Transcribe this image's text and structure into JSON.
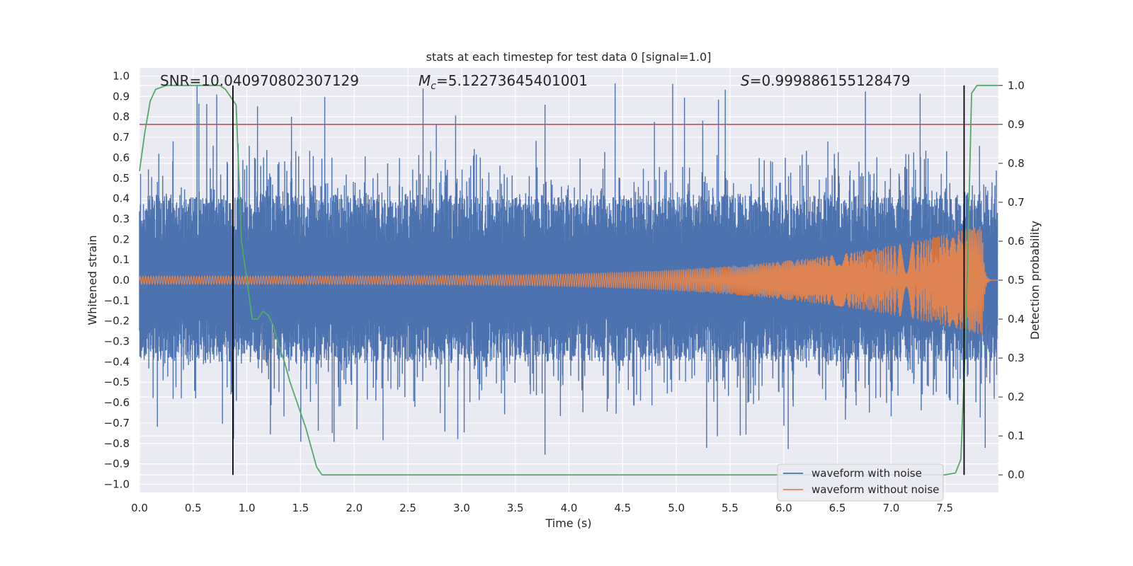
{
  "chart_data": {
    "type": "line",
    "title": "stats at each timestep for test data 0 [signal=1.0]",
    "xlabel": "Time (s)",
    "ylabel": "Whitened strain",
    "y2label": "Detection probability",
    "xlim": [
      0.0,
      8.0
    ],
    "ylim": [
      -1.04,
      1.04
    ],
    "y2lim": [
      -0.045,
      1.045
    ],
    "xticks": [
      "0.0",
      "0.5",
      "1.0",
      "1.5",
      "2.0",
      "2.5",
      "3.0",
      "3.5",
      "4.0",
      "4.5",
      "5.0",
      "5.5",
      "6.0",
      "6.5",
      "7.0",
      "7.5"
    ],
    "yticks": [
      "1.0",
      "0.9",
      "0.8",
      "0.7",
      "0.6",
      "0.5",
      "0.4",
      "0.3",
      "0.2",
      "0.1",
      "0.0",
      "−0.1",
      "−0.2",
      "−0.3",
      "−0.4",
      "−0.5",
      "−0.6",
      "−0.7",
      "−0.8",
      "−0.9",
      "−1.0"
    ],
    "y2ticks": [
      "1.0",
      "0.9",
      "0.8",
      "0.7",
      "0.6",
      "0.5",
      "0.4",
      "0.3",
      "0.2",
      "0.1",
      "0.0"
    ],
    "grid": true,
    "legend_position": "lower-right",
    "annotations": {
      "snr": "SNR=10.040970802307129",
      "mc_symbol": "M",
      "mc_sub": "c",
      "mc_value": "=5.12273645401001",
      "s_symbol": "S",
      "s_value": "=0.999886155128479"
    },
    "series": [
      {
        "name": "waveform with noise",
        "color": "#4c72b0",
        "envelope_max": 1.0,
        "envelope_min": -0.9
      },
      {
        "name": "waveform without noise",
        "color": "#dd8452",
        "chirp_start_amplitude": 0.02,
        "chirp_peak_amplitude": 0.27,
        "merger_time": 7.85
      },
      {
        "name": "detection probability",
        "color": "#55a868",
        "x": [
          0.0,
          0.05,
          0.1,
          0.15,
          0.25,
          0.5,
          0.75,
          0.8,
          0.85,
          0.9,
          0.95,
          1.0,
          1.05,
          1.1,
          1.15,
          1.2,
          1.25,
          1.3,
          1.35,
          1.4,
          1.45,
          1.5,
          1.55,
          1.6,
          1.65,
          1.7,
          1.75,
          2.0,
          3.0,
          4.0,
          5.0,
          6.0,
          7.0,
          7.5,
          7.6,
          7.65,
          7.7,
          7.75,
          7.8,
          7.85,
          8.0
        ],
        "y": [
          0.78,
          0.88,
          0.96,
          0.99,
          1.0,
          1.0,
          1.0,
          0.99,
          0.97,
          0.95,
          0.6,
          0.5,
          0.4,
          0.4,
          0.42,
          0.41,
          0.38,
          0.33,
          0.29,
          0.24,
          0.2,
          0.16,
          0.12,
          0.07,
          0.02,
          0.0,
          0.0,
          0.0,
          0.0,
          0.0,
          0.0,
          0.0,
          0.0,
          0.0,
          0.005,
          0.04,
          0.4,
          0.98,
          1.0,
          1.0,
          1.0
        ]
      }
    ],
    "threshold_line": {
      "value": 0.9,
      "axis": "y2",
      "color": "#c44e52"
    },
    "vertical_lines": [
      0.87,
      7.68
    ],
    "colors": {
      "background": "#eaeaf2",
      "grid": "#ffffff",
      "text": "#262626",
      "vline": "#000000"
    }
  }
}
